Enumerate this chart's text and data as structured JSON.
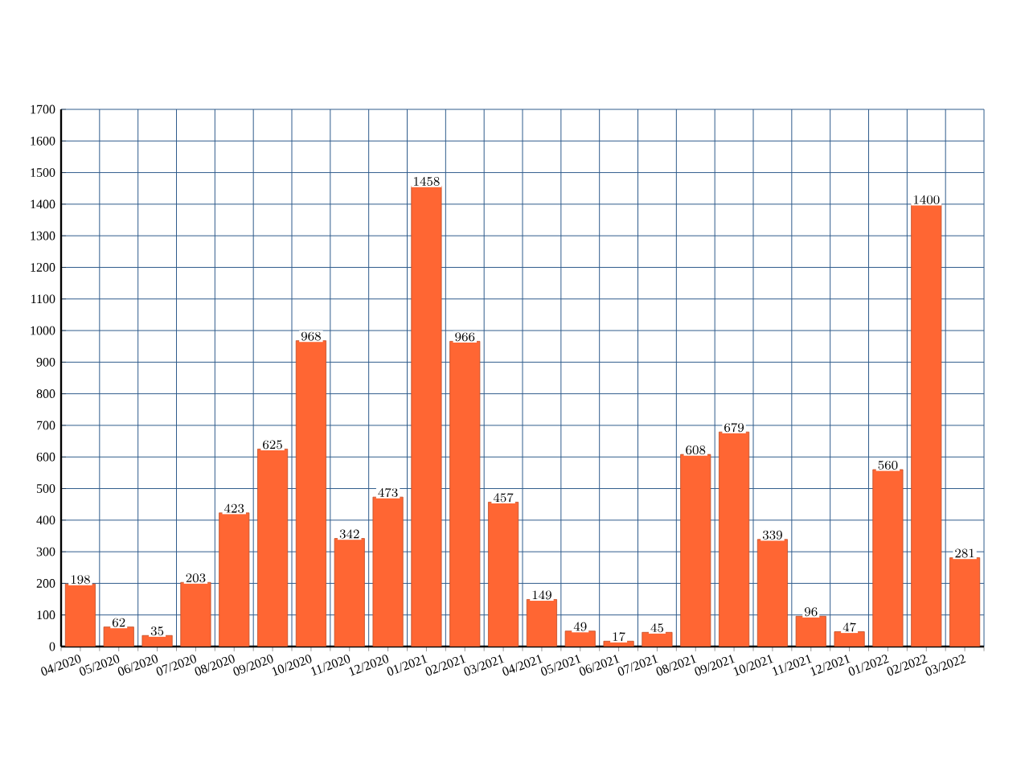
{
  "chart_data": {
    "type": "bar",
    "categories": [
      "04/2020",
      "05/2020",
      "06/2020",
      "07/2020",
      "08/2020",
      "09/2020",
      "10/2020",
      "11/2020",
      "12/2020",
      "01/2021",
      "02/2021",
      "03/2021",
      "04/2021",
      "05/2021",
      "06/2021",
      "07/2021",
      "08/2021",
      "09/2021",
      "10/2021",
      "11/2021",
      "12/2021",
      "01/2022",
      "02/2022",
      "03/2022"
    ],
    "values": [
      198,
      62,
      35,
      203,
      423,
      625,
      968,
      342,
      473,
      1458,
      966,
      457,
      149,
      49,
      17,
      45,
      608,
      679,
      339,
      96,
      47,
      560,
      1400,
      281
    ],
    "color": "#ff6633",
    "ylim": [
      0,
      1700
    ],
    "yticks": [
      0,
      100,
      200,
      300,
      400,
      500,
      600,
      700,
      800,
      900,
      1000,
      1100,
      1200,
      1300,
      1400,
      1500,
      1600,
      1700
    ],
    "grid": true,
    "data_labels": true
  }
}
